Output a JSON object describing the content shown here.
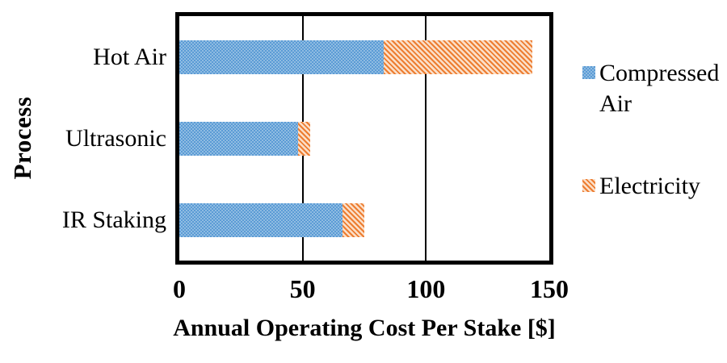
{
  "chart_data": {
    "type": "bar",
    "orientation": "horizontal",
    "stacked": true,
    "title": "",
    "xlabel": "Annual Operating Cost Per Stake [$]",
    "ylabel": "Process",
    "categories": [
      "Hot Air",
      "Ultrasonic",
      "IR Staking"
    ],
    "series": [
      {
        "name": "Compressed Air",
        "color": "#5B9BD5",
        "pattern": "checker-dots",
        "values": [
          83,
          48,
          66
        ]
      },
      {
        "name": "Electricity",
        "color": "#ED7D31",
        "pattern": "diagonal-hatch",
        "values": [
          60,
          5,
          9
        ]
      }
    ],
    "xlim": [
      0,
      150
    ],
    "xticks": [
      0,
      50,
      100,
      150
    ],
    "grid": "vertical",
    "legend_position": "right",
    "frame_color": "#000000",
    "background": "#FFFFFF"
  }
}
